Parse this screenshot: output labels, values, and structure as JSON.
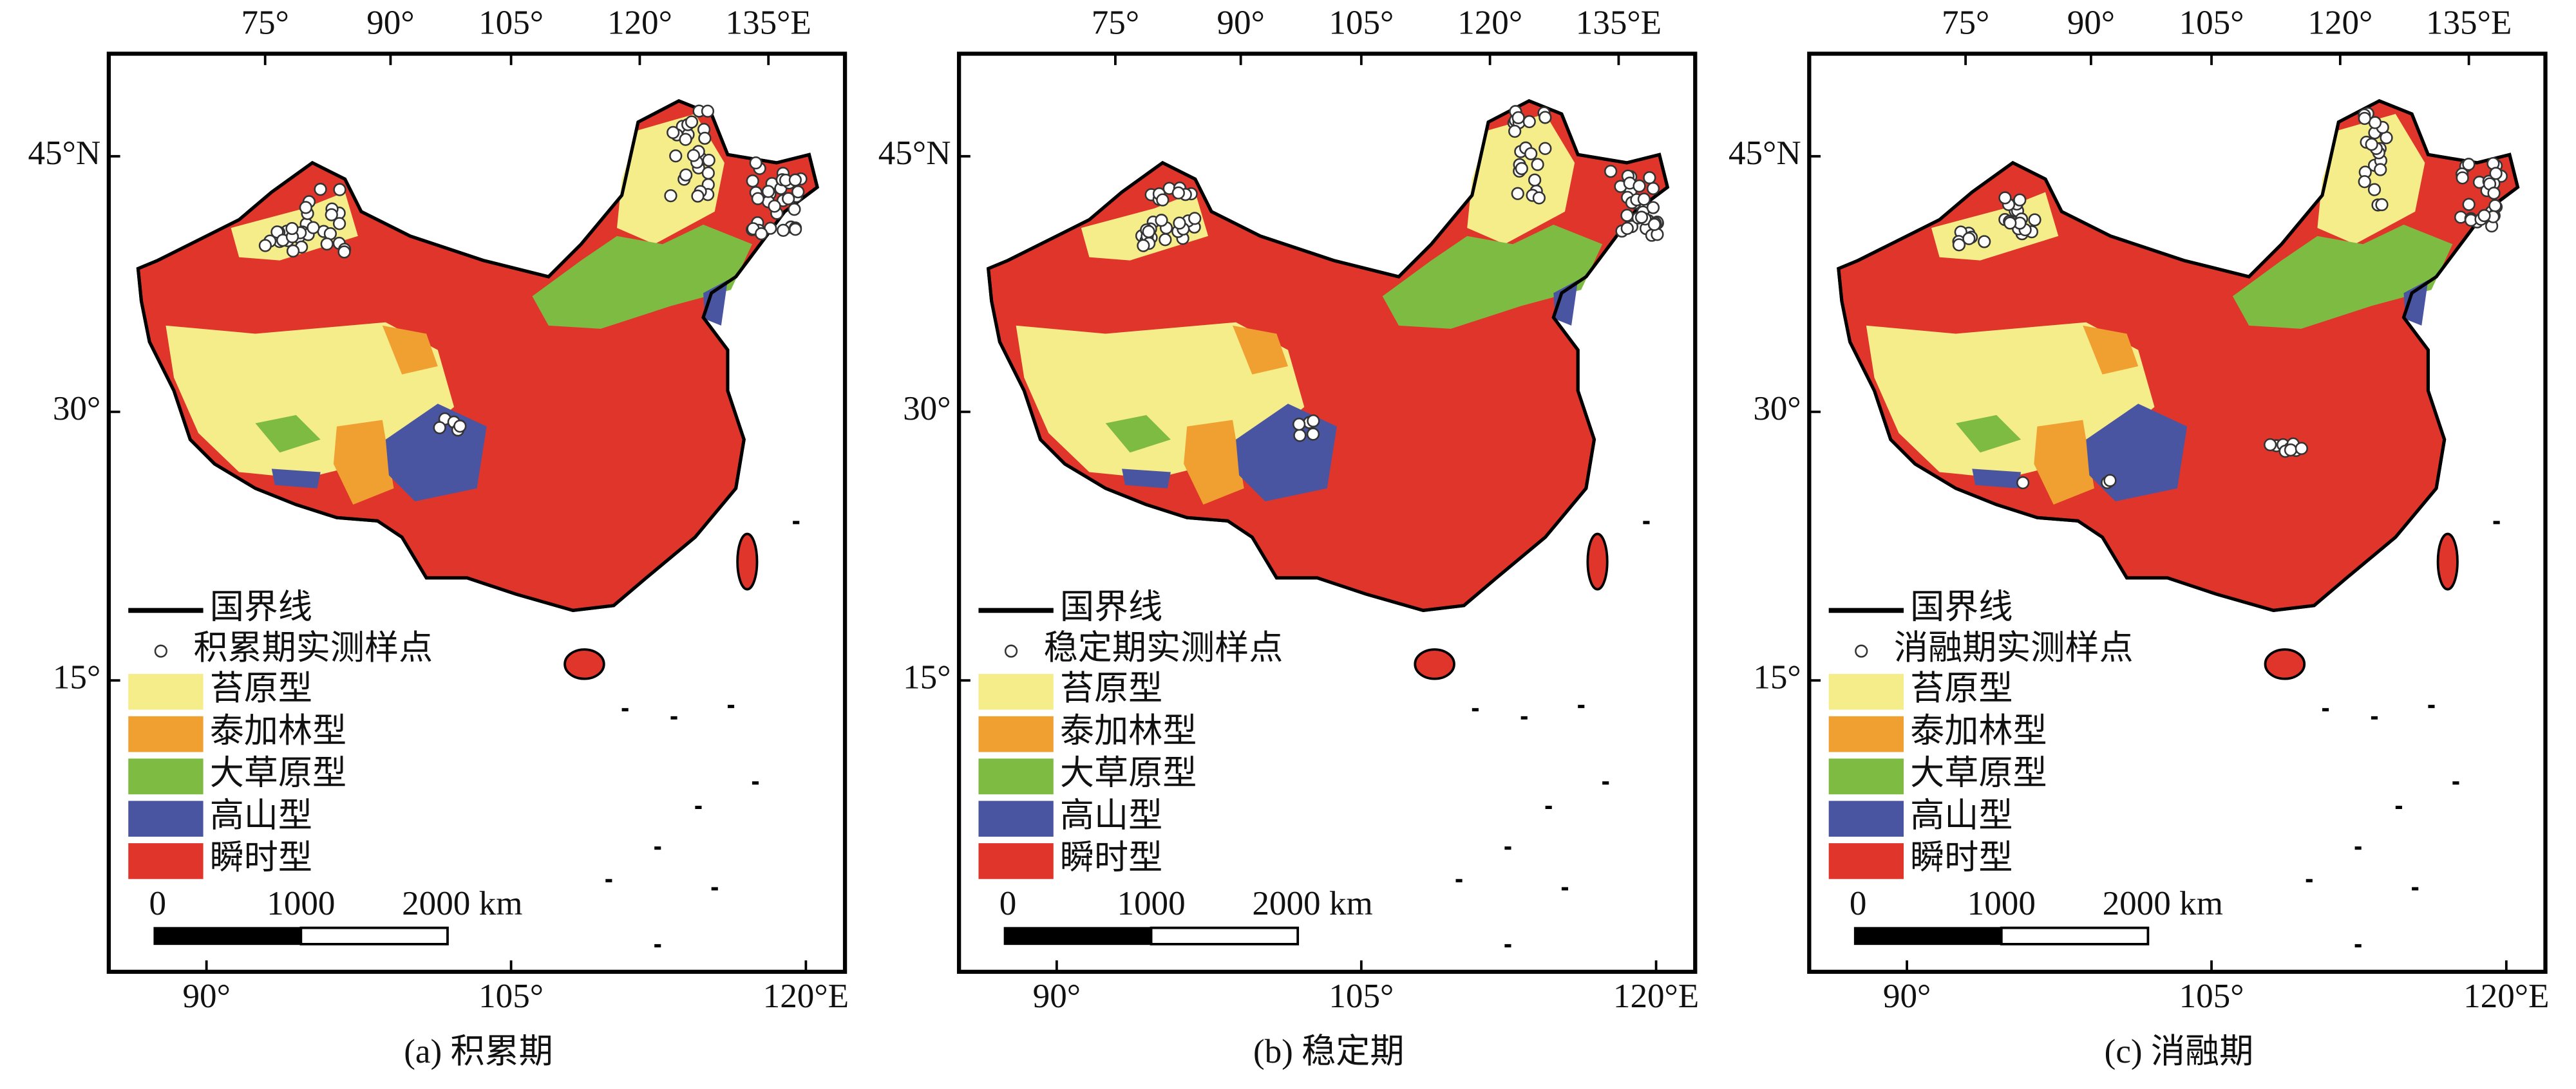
{
  "axes": {
    "top_ticks": [
      "75°",
      "90°",
      "105°",
      "120°",
      "135°E"
    ],
    "left_ticks": [
      "45°N",
      "30°",
      "15°"
    ],
    "bottom_ticks": [
      "90°",
      "105°",
      "120°E"
    ]
  },
  "legend": {
    "boundary": "国界线",
    "classes": [
      "苔原型",
      "泰加林型",
      "大草原型",
      "高山型",
      "瞬时型"
    ]
  },
  "scale_bar": {
    "labels": [
      "0",
      "1000",
      "2000 km"
    ]
  },
  "panels": [
    {
      "caption": "(a) 积累期",
      "sample_label": "积累期实测样点"
    },
    {
      "caption": "(b) 稳定期",
      "sample_label": "稳定期实测样点"
    },
    {
      "caption": "(c) 消融期",
      "sample_label": "消融期实测样点"
    }
  ]
}
